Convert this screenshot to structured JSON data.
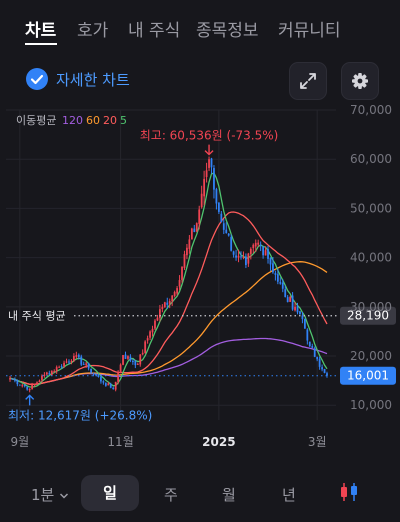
{
  "tabs": [
    {
      "label": "차트"
    },
    {
      "label": "호가"
    },
    {
      "label": "내 주식"
    },
    {
      "label": "종목정보"
    },
    {
      "label": "커뮤니티"
    }
  ],
  "detail_toggle": {
    "label": "자세한 차트"
  },
  "icons": {
    "expand": "expand-icon",
    "settings": "gear-icon",
    "candle": "candlestick-icon",
    "check": "check-icon"
  },
  "bottom_bar": {
    "interval": "1분",
    "periods": [
      "일",
      "주",
      "월",
      "년"
    ],
    "active_period": "일"
  },
  "colors": {
    "background": "#17171c",
    "up": "#f04452",
    "down": "#3182f6",
    "ma_120": "#a35ee0",
    "ma_60": "#ff9a2e",
    "ma_20": "#ff5c5c",
    "ma_5": "#4fc46f",
    "accent": "#3182f6"
  },
  "chart_data": {
    "type": "candlestick",
    "legend": {
      "title": "이동평균",
      "items": [
        "120",
        "60",
        "20",
        "5"
      ]
    },
    "y_ticks": [
      "70,000",
      "60,000",
      "50,000",
      "40,000",
      "30,000",
      "20,000",
      "10,000"
    ],
    "ylim": [
      7000,
      70000
    ],
    "x_ticks": [
      {
        "label": "9월",
        "index": 4
      },
      {
        "label": "11월",
        "index": 45
      },
      {
        "label": "2025",
        "index": 85
      },
      {
        "label": "3월",
        "index": 125
      }
    ],
    "n_candles": 130,
    "price_path": [
      [
        0,
        15500
      ],
      [
        8,
        13300
      ],
      [
        14,
        16200
      ],
      [
        20,
        17800
      ],
      [
        26,
        20000
      ],
      [
        32,
        17500
      ],
      [
        38,
        14600
      ],
      [
        42,
        13300
      ],
      [
        46,
        20200
      ],
      [
        52,
        18400
      ],
      [
        57,
        25000
      ],
      [
        62,
        30000
      ],
      [
        67,
        33000
      ],
      [
        72,
        42000
      ],
      [
        76,
        47000
      ],
      [
        79,
        56000
      ],
      [
        81,
        60000
      ],
      [
        84,
        51000
      ],
      [
        88,
        45000
      ],
      [
        92,
        40000
      ],
      [
        96,
        38500
      ],
      [
        100,
        43000
      ],
      [
        104,
        41500
      ],
      [
        108,
        36500
      ],
      [
        112,
        32000
      ],
      [
        116,
        30000
      ],
      [
        119,
        27500
      ],
      [
        122,
        22000
      ],
      [
        126,
        17800
      ],
      [
        129,
        16001
      ]
    ],
    "ma_final": {
      "120": 20500,
      "60": 37000,
      "20": 26500
    },
    "high": {
      "label": "최고: 60,536원 (-73.5%)",
      "value": 60536,
      "index": 81
    },
    "low": {
      "label": "최저: 12,617원 (+26.8%)",
      "value": 12617,
      "index": 8
    },
    "avg_price": {
      "label": "내 주식 평균",
      "value": 28190,
      "tag": "28,190"
    },
    "current_price": {
      "value": 16001,
      "tag": "16,001"
    }
  }
}
